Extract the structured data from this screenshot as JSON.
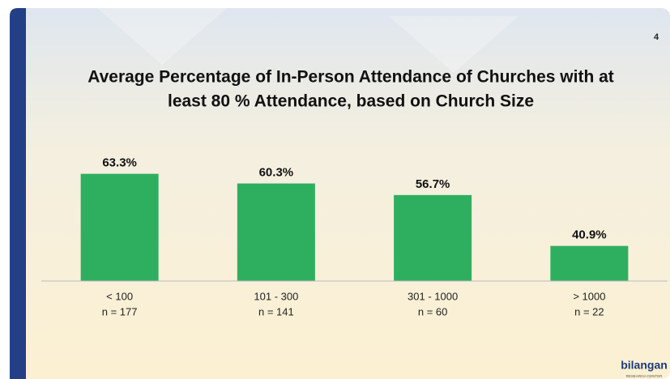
{
  "page_number": "4",
  "logo": {
    "name": "bilangan",
    "tagline": "RESEARCH CENTER"
  },
  "chart_data": {
    "type": "bar",
    "title": [
      "Average Percentage of In-Person Attendance of Churches with at",
      "least 80 % Attendance, based on Church Size"
    ],
    "categories": [
      "< 100",
      "101 - 300",
      "301 - 1000",
      "> 1000"
    ],
    "sample_sizes": [
      "n = 177",
      "n = 141",
      "n = 60",
      "n = 22"
    ],
    "values": [
      63.3,
      60.3,
      56.7,
      40.9
    ],
    "value_labels": [
      "63.3%",
      "60.3%",
      "56.7%",
      "40.9%"
    ],
    "color": "#2eaf5f",
    "ylim": [
      30,
      70
    ]
  }
}
